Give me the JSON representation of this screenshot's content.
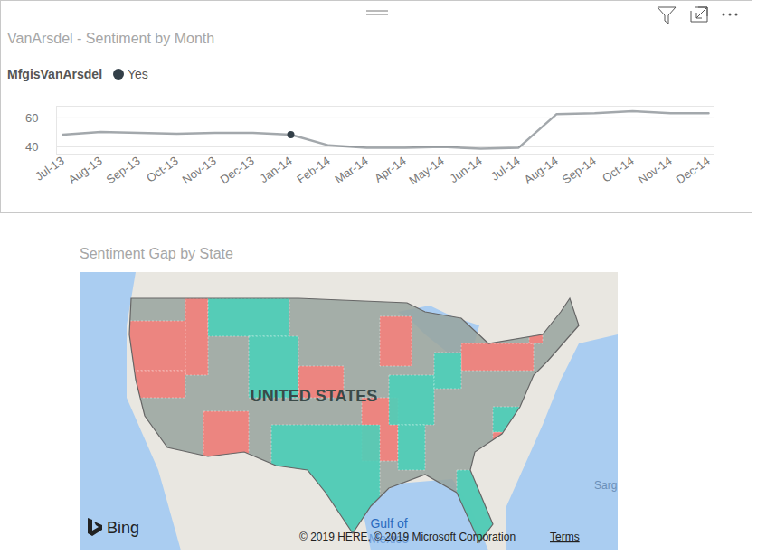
{
  "chart_data": [
    {
      "type": "line",
      "title": "VanArsdel - Sentiment by Month",
      "legend": "top-left",
      "legend_title": "MfgisVanArsdel",
      "categories": [
        "Jul-13",
        "Aug-13",
        "Sep-13",
        "Oct-13",
        "Nov-13",
        "Dec-13",
        "Jan-14",
        "Feb-14",
        "Mar-14",
        "Apr-14",
        "May-14",
        "Jun-14",
        "Jul-14",
        "Aug-14",
        "Sep-14",
        "Oct-14",
        "Nov-14",
        "Dec-14"
      ],
      "series": [
        {
          "name": "Yes",
          "color": "#333f48",
          "marker": "circle",
          "selected": "Jan-14",
          "values": [
            48.4,
            50.3,
            49.7,
            49.0,
            49.7,
            49.7,
            48.4,
            41.0,
            39.4,
            39.4,
            40.0,
            38.7,
            39.4,
            62.6,
            63.2,
            64.5,
            63.2,
            63.2
          ]
        }
      ],
      "ylim": [
        35,
        68
      ],
      "yticks": [
        40,
        60
      ],
      "grid": true
    },
    {
      "type": "map",
      "title": "Sentiment Gap by State",
      "labels": [
        "UNITED STATES",
        "Gulf of",
        "Mexico",
        "Sarg"
      ],
      "credits": [
        "Bing",
        "© 2019 HERE, © 2019 Microsoft Corporation",
        "Terms"
      ],
      "colors": [
        "#f4817b",
        "#4ccfb8",
        "#98a39e"
      ]
    }
  ]
}
